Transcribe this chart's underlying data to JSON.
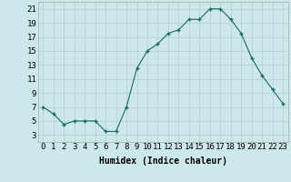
{
  "x": [
    0,
    1,
    2,
    3,
    4,
    5,
    6,
    7,
    8,
    9,
    10,
    11,
    12,
    13,
    14,
    15,
    16,
    17,
    18,
    19,
    20,
    21,
    22,
    23
  ],
  "y": [
    7,
    6,
    4.5,
    5,
    5,
    5,
    3.5,
    3.5,
    7,
    12.5,
    15,
    16,
    17.5,
    18,
    19.5,
    19.5,
    21,
    21,
    19.5,
    17.5,
    14,
    11.5,
    9.5,
    7.5
  ],
  "line_color": "#1a6b5a",
  "marker_color": "#1a6b5a",
  "bg_color": "#cce8ea",
  "grid_color": "#b0cdd0",
  "xlabel": "Humidex (Indice chaleur)",
  "xlim": [
    -0.5,
    23.5
  ],
  "ylim": [
    2,
    22
  ],
  "xtick_labels": [
    "0",
    "1",
    "2",
    "3",
    "4",
    "5",
    "6",
    "7",
    "8",
    "9",
    "10",
    "11",
    "12",
    "13",
    "14",
    "15",
    "16",
    "17",
    "18",
    "19",
    "20",
    "21",
    "22",
    "23"
  ],
  "ytick_values": [
    3,
    5,
    7,
    9,
    11,
    13,
    15,
    17,
    19,
    21
  ],
  "xlabel_fontsize": 7,
  "tick_fontsize": 6.5
}
